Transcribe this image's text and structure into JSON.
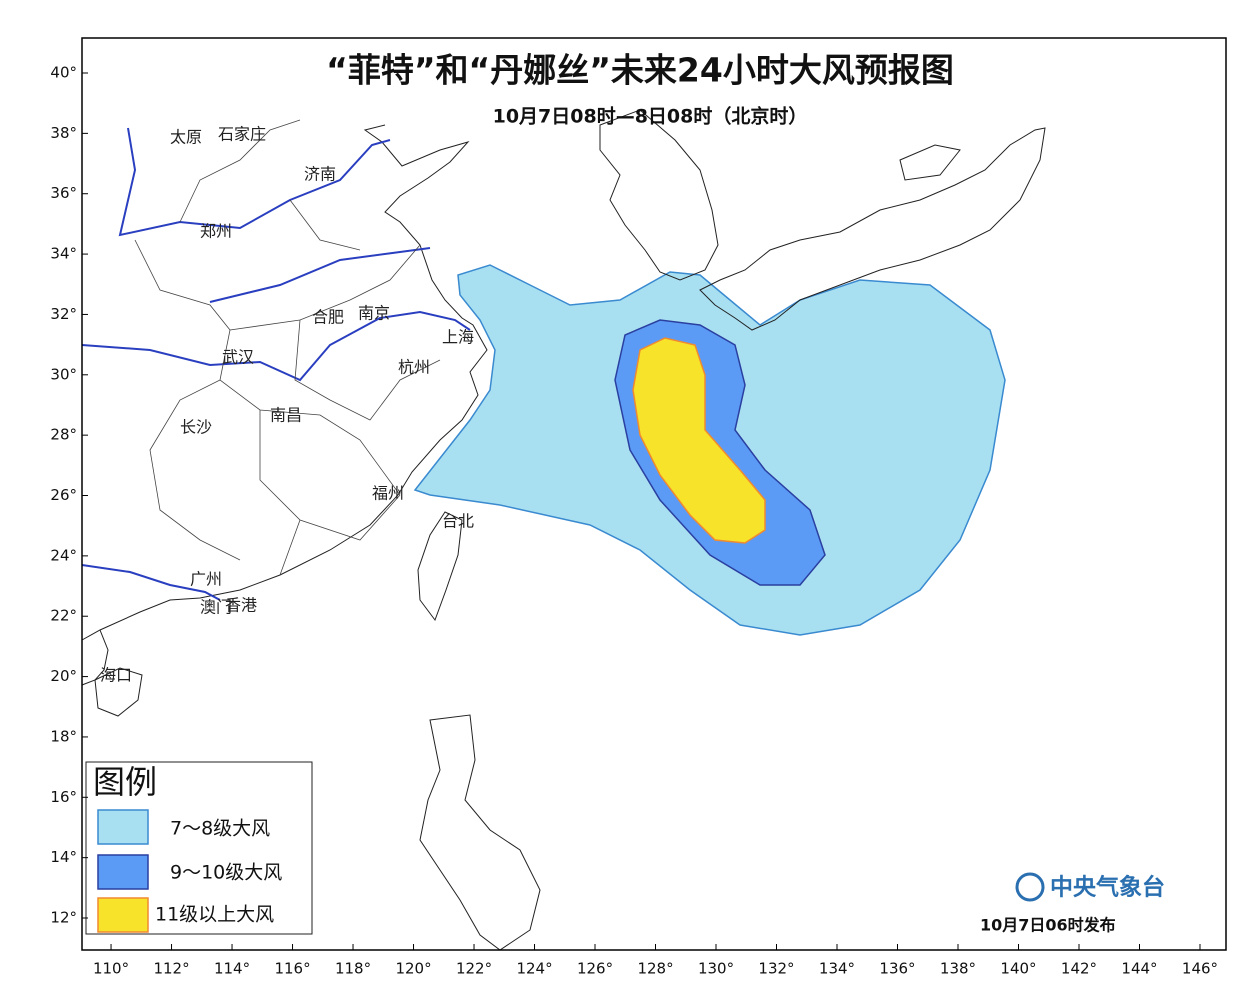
{
  "header": {
    "title": "“菲特”和“丹娜丝”未来24小时大风预报图",
    "subtitle": "10月7日08时—8日08时（北京时）"
  },
  "axes": {
    "xlim": [
      109.04,
      146.86
    ],
    "ylim": [
      10.94,
      41.16
    ],
    "xticks": [
      {
        "value": 110,
        "label": "110°"
      },
      {
        "value": 112,
        "label": "112°"
      },
      {
        "value": 114,
        "label": "114°"
      },
      {
        "value": 116,
        "label": "116°"
      },
      {
        "value": 118,
        "label": "118°"
      },
      {
        "value": 120,
        "label": "120°"
      },
      {
        "value": 122,
        "label": "122°"
      },
      {
        "value": 124,
        "label": "124°"
      },
      {
        "value": 126,
        "label": "126°"
      },
      {
        "value": 128,
        "label": "128°"
      },
      {
        "value": 130,
        "label": "130°"
      },
      {
        "value": 132,
        "label": "132°"
      },
      {
        "value": 134,
        "label": "134°"
      },
      {
        "value": 136,
        "label": "136°"
      },
      {
        "value": 138,
        "label": "138°"
      },
      {
        "value": 140,
        "label": "140°"
      },
      {
        "value": 142,
        "label": "142°"
      },
      {
        "value": 144,
        "label": "144°"
      },
      {
        "value": 146,
        "label": "146°"
      }
    ],
    "yticks": [
      {
        "value": 12,
        "label": "12°"
      },
      {
        "value": 14,
        "label": "14°"
      },
      {
        "value": 16,
        "label": "16°"
      },
      {
        "value": 18,
        "label": "18°"
      },
      {
        "value": 20,
        "label": "20°"
      },
      {
        "value": 22,
        "label": "22°"
      },
      {
        "value": 24,
        "label": "24°"
      },
      {
        "value": 26,
        "label": "26°"
      },
      {
        "value": 28,
        "label": "28°"
      },
      {
        "value": 30,
        "label": "30°"
      },
      {
        "value": 32,
        "label": "32°"
      },
      {
        "value": 34,
        "label": "34°"
      },
      {
        "value": 36,
        "label": "36°"
      },
      {
        "value": 38,
        "label": "38°"
      },
      {
        "value": 40,
        "label": "40°"
      }
    ]
  },
  "legend": {
    "title": "图例",
    "items": [
      {
        "label": "7～8级大风",
        "color": "#a8e0f2"
      },
      {
        "label": "9～10级大风",
        "color": "#5b9bf5"
      },
      {
        "label": "11级以上大风",
        "color": "#f8e32b"
      }
    ]
  },
  "cities": [
    "太原",
    "石家庄",
    "济南",
    "郑州",
    "合肥",
    "南京",
    "上海",
    "武汉",
    "杭州",
    "长沙",
    "南昌",
    "福州",
    "台北",
    "广州",
    "澳门",
    "香港",
    "海口"
  ],
  "footer": {
    "issuer": "中央气象台",
    "issued": "10月7日06时发布"
  }
}
